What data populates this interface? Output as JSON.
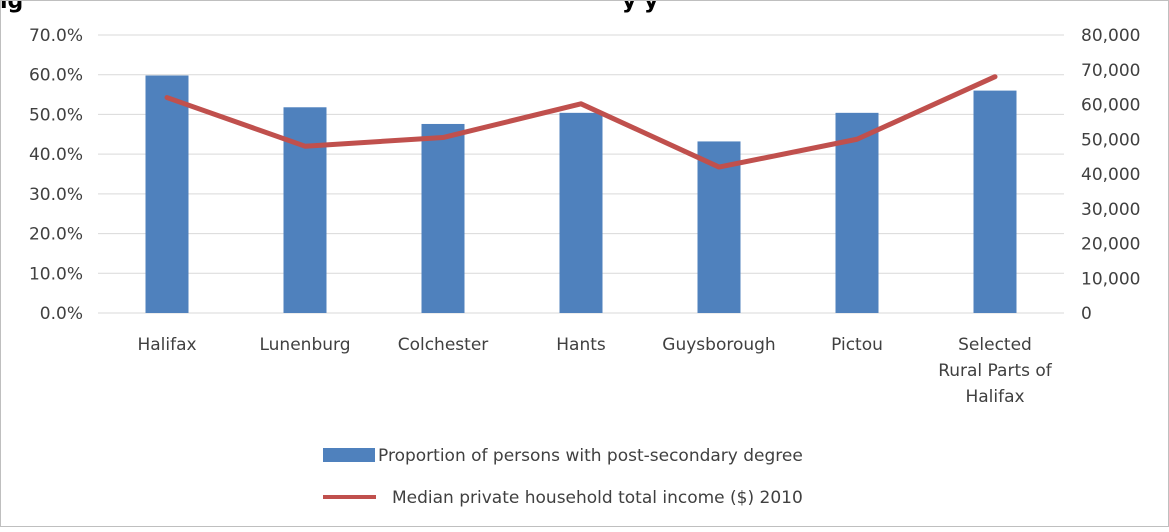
{
  "heading_fragment": "ig",
  "heading_fragment_2": "y  y",
  "colors": {
    "bar": "#4f81bd",
    "line": "#c0504d",
    "grid": "#d9d9d9",
    "text": "#404040",
    "frame": "#bfbfbf"
  },
  "chart_data": {
    "type": "bar",
    "categories": [
      "Halifax",
      "Lunenburg",
      "Colchester",
      "Hants",
      "Guysborough",
      "Pictou",
      "Selected Rural Parts of Halifax"
    ],
    "category_lines": [
      [
        "Halifax"
      ],
      [
        "Lunenburg"
      ],
      [
        "Colchester"
      ],
      [
        "Hants"
      ],
      [
        "Guysborough"
      ],
      [
        "Pictou"
      ],
      [
        "Selected",
        "Rural Parts of",
        "Halifax"
      ]
    ],
    "series": [
      {
        "name": "Proportion of persons with post-secondary degree",
        "type": "bar",
        "axis": "left",
        "values": [
          59.8,
          51.8,
          47.6,
          50.4,
          43.2,
          50.4,
          56.0
        ]
      },
      {
        "name": "Median private household total income ($) 2010",
        "type": "line",
        "axis": "right",
        "values": [
          62000,
          48000,
          50500,
          60200,
          42000,
          50000,
          68000
        ]
      }
    ],
    "y_left": {
      "min": 0,
      "max": 70,
      "step": 10,
      "tick_labels": [
        "0.0%",
        "10.0%",
        "20.0%",
        "30.0%",
        "40.0%",
        "50.0%",
        "60.0%",
        "70.0%"
      ]
    },
    "y_right": {
      "min": 0,
      "max": 80000,
      "step": 10000,
      "tick_labels": [
        "0",
        "10,000",
        "20,000",
        "30,000",
        "40,000",
        "50,000",
        "60,000",
        "70,000",
        "80,000"
      ]
    },
    "grid": true,
    "legend_position": "bottom"
  }
}
